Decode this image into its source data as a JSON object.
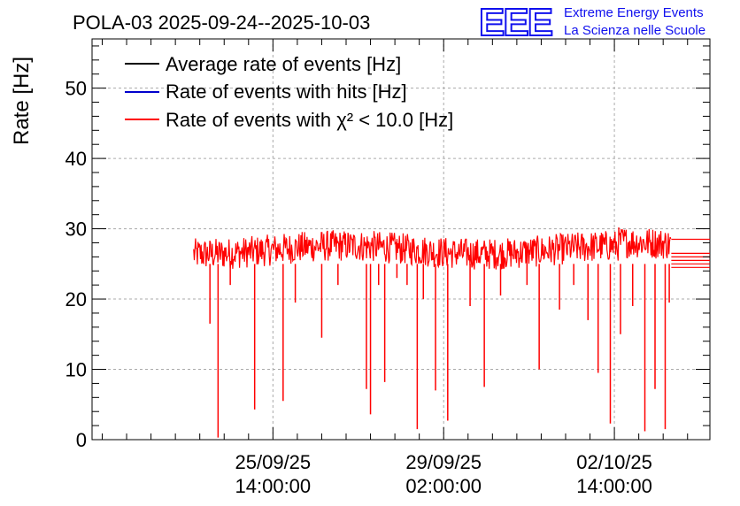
{
  "header": {
    "title": "POLA-03 2025-09-24--2025-10-03",
    "logo_text": "EEE",
    "logo_line1": "Extreme Energy Events",
    "logo_line2": "La Scienza nelle Scuole"
  },
  "colors": {
    "average": "#000000",
    "hits": "#0000cc",
    "chi2": "#ff0000",
    "grid": "#aaaaaa",
    "logo": "#1010ee"
  },
  "chart_data": {
    "type": "line",
    "title": "POLA-03 2025-09-24--2025-10-03",
    "xlabel": "",
    "ylabel": "Rate [Hz]",
    "ylim": [
      0,
      57
    ],
    "xlim_hours": [
      -89,
      215
    ],
    "x_unit": "hours since 25/09/25 14:00:00",
    "yticks": [
      "0",
      "10",
      "20",
      "30",
      "40",
      "50"
    ],
    "xticks": [
      {
        "hours": 0,
        "date": "25/09/25",
        "time": "14:00:00"
      },
      {
        "hours": 84,
        "date": "29/09/25",
        "time": "02:00:00"
      },
      {
        "hours": 168,
        "date": "02/10/25",
        "time": "14:00:00"
      }
    ],
    "grid": true,
    "legend_position": "top-left",
    "series": [
      {
        "name": "Average rate of events [Hz]",
        "color": "#000000",
        "mean": 27.0
      },
      {
        "name": "Rate of events with hits [Hz]",
        "color": "#0000cc",
        "mean": 27.0
      },
      {
        "name": "Rate of events with χ² < 10.0 [Hz]",
        "color": "#ff0000",
        "mean": 27.0,
        "noise": 1.6,
        "x_range_hours": [
          -39,
          196
        ],
        "dips": [
          {
            "x": -31,
            "y": 16.5
          },
          {
            "x": -27,
            "y": 0.3
          },
          {
            "x": -21,
            "y": 22
          },
          {
            "x": -9,
            "y": 4.3
          },
          {
            "x": 5,
            "y": 5.5
          },
          {
            "x": 11,
            "y": 19.5
          },
          {
            "x": 24,
            "y": 14.5
          },
          {
            "x": 32,
            "y": 22
          },
          {
            "x": 46,
            "y": 7.2
          },
          {
            "x": 48,
            "y": 3.6
          },
          {
            "x": 52,
            "y": 22
          },
          {
            "x": 55,
            "y": 8.2
          },
          {
            "x": 61,
            "y": 23
          },
          {
            "x": 66,
            "y": 22
          },
          {
            "x": 71,
            "y": 1.5
          },
          {
            "x": 74,
            "y": 20
          },
          {
            "x": 80,
            "y": 7
          },
          {
            "x": 86,
            "y": 2.7
          },
          {
            "x": 97,
            "y": 19
          },
          {
            "x": 104,
            "y": 7.5
          },
          {
            "x": 112,
            "y": 20.5
          },
          {
            "x": 125,
            "y": 22
          },
          {
            "x": 131,
            "y": 10
          },
          {
            "x": 141,
            "y": 18.5
          },
          {
            "x": 148,
            "y": 22
          },
          {
            "x": 155,
            "y": 17
          },
          {
            "x": 160,
            "y": 9.5
          },
          {
            "x": 166,
            "y": 2.3
          },
          {
            "x": 171,
            "y": 15
          },
          {
            "x": 177,
            "y": 19
          },
          {
            "x": 183,
            "y": 1.2
          },
          {
            "x": 188,
            "y": 7.2
          },
          {
            "x": 193,
            "y": 1.5
          },
          {
            "x": 195,
            "y": 19.5
          }
        ],
        "tail_levels": [
          28.5,
          26.5,
          26.0,
          25.5,
          25.0,
          24.5
        ]
      }
    ]
  }
}
